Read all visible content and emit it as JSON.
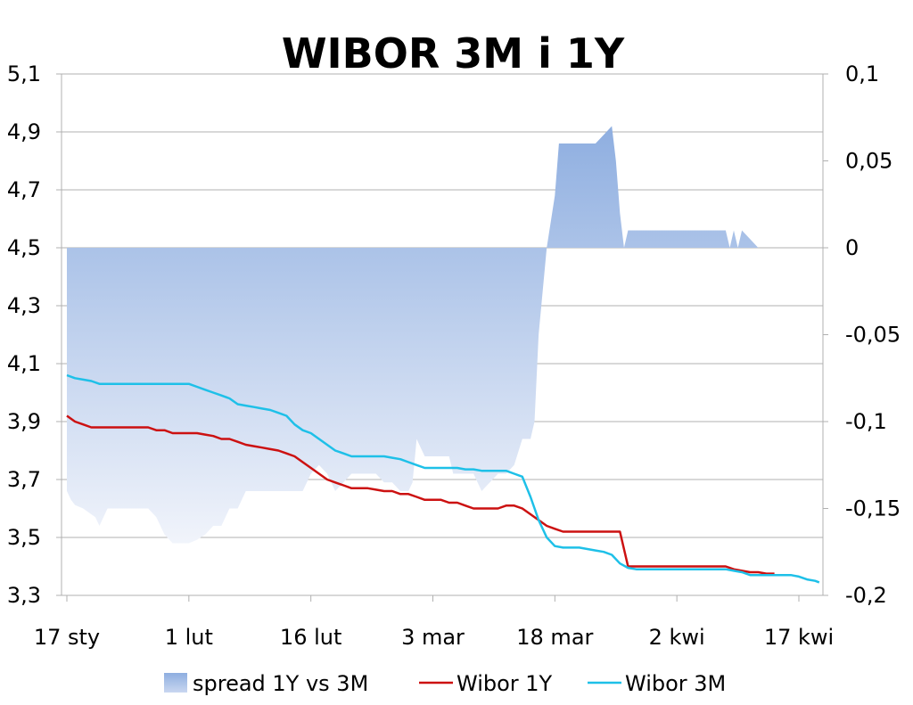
{
  "chart_data": {
    "type": "line",
    "title": "WIBOR 3M i 1Y",
    "x_tick_labels": [
      "17 sty",
      "1 lut",
      "16 lut",
      "3 mar",
      "18 mar",
      "2 kwi",
      "17 kwi"
    ],
    "x_tick_days": [
      0,
      15,
      30,
      45,
      60,
      75,
      90
    ],
    "y_left": {
      "ylim": [
        3.3,
        5.1
      ],
      "tick_labels": [
        "5,1",
        "4,9",
        "4,7",
        "4,5",
        "4,3",
        "4,1",
        "3,9",
        "3,7",
        "3,5",
        "3,3"
      ]
    },
    "y_right": {
      "ylim": [
        -0.2,
        0.1
      ],
      "tick_labels": [
        "0,1",
        "0,05",
        "0",
        "-0,05",
        "-0,1",
        "-0,15",
        "-0,2"
      ]
    },
    "grid": true,
    "legend_position": "bottom",
    "colors": {
      "spread": "#8eaee0",
      "wibor_1y": "#cc1111",
      "wibor_3m": "#1ec0e8",
      "grid": "#b0b0b0"
    },
    "series": [
      {
        "name": "spread 1Y vs 3M",
        "kind": "area",
        "axis": "right",
        "points": [
          [
            0,
            -0.14
          ],
          [
            0.5,
            -0.145
          ],
          [
            1,
            -0.148
          ],
          [
            2,
            -0.15
          ],
          [
            3.5,
            -0.155
          ],
          [
            4,
            -0.16
          ],
          [
            5,
            -0.15
          ],
          [
            6,
            -0.15
          ],
          [
            7,
            -0.15
          ],
          [
            8,
            -0.15
          ],
          [
            9,
            -0.15
          ],
          [
            10,
            -0.15
          ],
          [
            11,
            -0.155
          ],
          [
            12,
            -0.165
          ],
          [
            13,
            -0.17
          ],
          [
            14,
            -0.17
          ],
          [
            15,
            -0.17
          ],
          [
            16,
            -0.168
          ],
          [
            17,
            -0.165
          ],
          [
            18,
            -0.16
          ],
          [
            19,
            -0.16
          ],
          [
            20,
            -0.15
          ],
          [
            21,
            -0.15
          ],
          [
            22,
            -0.14
          ],
          [
            23,
            -0.14
          ],
          [
            24,
            -0.14
          ],
          [
            25,
            -0.14
          ],
          [
            26,
            -0.14
          ],
          [
            27,
            -0.14
          ],
          [
            28,
            -0.14
          ],
          [
            29,
            -0.14
          ],
          [
            30,
            -0.13
          ],
          [
            31,
            -0.125
          ],
          [
            32,
            -0.13
          ],
          [
            33,
            -0.14
          ],
          [
            34,
            -0.135
          ],
          [
            35,
            -0.13
          ],
          [
            36,
            -0.13
          ],
          [
            37,
            -0.13
          ],
          [
            38,
            -0.13
          ],
          [
            39,
            -0.135
          ],
          [
            40,
            -0.135
          ],
          [
            41,
            -0.14
          ],
          [
            42,
            -0.14
          ],
          [
            42.5,
            -0.135
          ],
          [
            43,
            -0.11
          ],
          [
            43.5,
            -0.115
          ],
          [
            44,
            -0.12
          ],
          [
            45,
            -0.12
          ],
          [
            46,
            -0.12
          ],
          [
            47,
            -0.12
          ],
          [
            47.5,
            -0.13
          ],
          [
            48,
            -0.13
          ],
          [
            49,
            -0.13
          ],
          [
            50,
            -0.13
          ],
          [
            51,
            -0.14
          ],
          [
            52,
            -0.135
          ],
          [
            53,
            -0.13
          ],
          [
            54,
            -0.13
          ],
          [
            55,
            -0.125
          ],
          [
            56,
            -0.11
          ],
          [
            57,
            -0.11
          ],
          [
            57.5,
            -0.1
          ],
          [
            58,
            -0.05
          ],
          [
            59,
            0
          ],
          [
            60,
            0.03
          ],
          [
            60.5,
            0.06
          ],
          [
            61,
            0.06
          ],
          [
            62,
            0.06
          ],
          [
            63,
            0.06
          ],
          [
            64,
            0.06
          ],
          [
            65,
            0.06
          ],
          [
            66,
            0.065
          ],
          [
            67,
            0.07
          ],
          [
            67.5,
            0.05
          ],
          [
            68,
            0.02
          ],
          [
            68.5,
            0
          ],
          [
            69,
            0.01
          ],
          [
            70,
            0.01
          ],
          [
            71,
            0.01
          ],
          [
            72,
            0.01
          ],
          [
            73,
            0.01
          ],
          [
            74,
            0.01
          ],
          [
            75,
            0.01
          ],
          [
            76,
            0.01
          ],
          [
            77,
            0.01
          ],
          [
            78,
            0.01
          ],
          [
            79,
            0.01
          ],
          [
            80,
            0.01
          ],
          [
            81,
            0.01
          ],
          [
            81.5,
            0
          ],
          [
            82,
            0.01
          ],
          [
            82.5,
            0
          ],
          [
            83,
            0.01
          ],
          [
            84,
            0.005
          ],
          [
            85,
            0
          ]
        ]
      },
      {
        "name": "Wibor 1Y",
        "kind": "line",
        "axis": "left",
        "points": [
          [
            0,
            3.92
          ],
          [
            1,
            3.9
          ],
          [
            2,
            3.89
          ],
          [
            3,
            3.88
          ],
          [
            4,
            3.88
          ],
          [
            5,
            3.88
          ],
          [
            6,
            3.88
          ],
          [
            7,
            3.88
          ],
          [
            8,
            3.88
          ],
          [
            9,
            3.88
          ],
          [
            10,
            3.88
          ],
          [
            11,
            3.87
          ],
          [
            12,
            3.87
          ],
          [
            13,
            3.86
          ],
          [
            14,
            3.86
          ],
          [
            15,
            3.86
          ],
          [
            16,
            3.86
          ],
          [
            17,
            3.855
          ],
          [
            18,
            3.85
          ],
          [
            19,
            3.84
          ],
          [
            20,
            3.84
          ],
          [
            21,
            3.83
          ],
          [
            22,
            3.82
          ],
          [
            23,
            3.815
          ],
          [
            24,
            3.81
          ],
          [
            25,
            3.805
          ],
          [
            26,
            3.8
          ],
          [
            27,
            3.79
          ],
          [
            28,
            3.78
          ],
          [
            29,
            3.76
          ],
          [
            30,
            3.74
          ],
          [
            31,
            3.72
          ],
          [
            32,
            3.7
          ],
          [
            33,
            3.69
          ],
          [
            34,
            3.68
          ],
          [
            35,
            3.67
          ],
          [
            36,
            3.67
          ],
          [
            37,
            3.67
          ],
          [
            38,
            3.665
          ],
          [
            39,
            3.66
          ],
          [
            40,
            3.66
          ],
          [
            41,
            3.65
          ],
          [
            42,
            3.65
          ],
          [
            43,
            3.64
          ],
          [
            44,
            3.63
          ],
          [
            45,
            3.63
          ],
          [
            46,
            3.63
          ],
          [
            47,
            3.62
          ],
          [
            48,
            3.62
          ],
          [
            49,
            3.61
          ],
          [
            50,
            3.6
          ],
          [
            51,
            3.6
          ],
          [
            52,
            3.6
          ],
          [
            53,
            3.6
          ],
          [
            54,
            3.61
          ],
          [
            55,
            3.61
          ],
          [
            56,
            3.6
          ],
          [
            57,
            3.58
          ],
          [
            58,
            3.56
          ],
          [
            59,
            3.54
          ],
          [
            60,
            3.53
          ],
          [
            61,
            3.52
          ],
          [
            62,
            3.52
          ],
          [
            63,
            3.52
          ],
          [
            64,
            3.52
          ],
          [
            65,
            3.52
          ],
          [
            66,
            3.52
          ],
          [
            67,
            3.52
          ],
          [
            68,
            3.52
          ],
          [
            69,
            3.4
          ],
          [
            70,
            3.4
          ],
          [
            71,
            3.4
          ],
          [
            72,
            3.4
          ],
          [
            73,
            3.4
          ],
          [
            74,
            3.4
          ],
          [
            75,
            3.4
          ],
          [
            76,
            3.4
          ],
          [
            77,
            3.4
          ],
          [
            78,
            3.4
          ],
          [
            79,
            3.4
          ],
          [
            80,
            3.4
          ],
          [
            81,
            3.4
          ],
          [
            82,
            3.39
          ],
          [
            83,
            3.385
          ],
          [
            84,
            3.38
          ],
          [
            85,
            3.38
          ],
          [
            86,
            3.375
          ],
          [
            87,
            3.375
          ]
        ]
      },
      {
        "name": "Wibor 3M",
        "kind": "line",
        "axis": "left",
        "points": [
          [
            0,
            4.06
          ],
          [
            1,
            4.05
          ],
          [
            2,
            4.045
          ],
          [
            3,
            4.04
          ],
          [
            4,
            4.03
          ],
          [
            5,
            4.03
          ],
          [
            6,
            4.03
          ],
          [
            7,
            4.03
          ],
          [
            8,
            4.03
          ],
          [
            9,
            4.03
          ],
          [
            10,
            4.03
          ],
          [
            11,
            4.03
          ],
          [
            12,
            4.03
          ],
          [
            13,
            4.03
          ],
          [
            14,
            4.03
          ],
          [
            15,
            4.03
          ],
          [
            16,
            4.02
          ],
          [
            17,
            4.01
          ],
          [
            18,
            4.0
          ],
          [
            19,
            3.99
          ],
          [
            20,
            3.98
          ],
          [
            21,
            3.96
          ],
          [
            22,
            3.955
          ],
          [
            23,
            3.95
          ],
          [
            24,
            3.945
          ],
          [
            25,
            3.94
          ],
          [
            26,
            3.93
          ],
          [
            27,
            3.92
          ],
          [
            28,
            3.89
          ],
          [
            29,
            3.87
          ],
          [
            30,
            3.86
          ],
          [
            31,
            3.84
          ],
          [
            32,
            3.82
          ],
          [
            33,
            3.8
          ],
          [
            34,
            3.79
          ],
          [
            35,
            3.78
          ],
          [
            36,
            3.78
          ],
          [
            37,
            3.78
          ],
          [
            38,
            3.78
          ],
          [
            39,
            3.78
          ],
          [
            40,
            3.775
          ],
          [
            41,
            3.77
          ],
          [
            42,
            3.76
          ],
          [
            43,
            3.75
          ],
          [
            44,
            3.74
          ],
          [
            45,
            3.74
          ],
          [
            46,
            3.74
          ],
          [
            47,
            3.74
          ],
          [
            48,
            3.74
          ],
          [
            49,
            3.735
          ],
          [
            50,
            3.735
          ],
          [
            51,
            3.73
          ],
          [
            52,
            3.73
          ],
          [
            53,
            3.73
          ],
          [
            54,
            3.73
          ],
          [
            55,
            3.72
          ],
          [
            56,
            3.71
          ],
          [
            57,
            3.64
          ],
          [
            58,
            3.56
          ],
          [
            59,
            3.5
          ],
          [
            60,
            3.47
          ],
          [
            61,
            3.465
          ],
          [
            62,
            3.465
          ],
          [
            63,
            3.465
          ],
          [
            64,
            3.46
          ],
          [
            65,
            3.455
          ],
          [
            66,
            3.45
          ],
          [
            67,
            3.44
          ],
          [
            68,
            3.41
          ],
          [
            69,
            3.395
          ],
          [
            70,
            3.39
          ],
          [
            71,
            3.39
          ],
          [
            72,
            3.39
          ],
          [
            73,
            3.39
          ],
          [
            74,
            3.39
          ],
          [
            75,
            3.39
          ],
          [
            76,
            3.39
          ],
          [
            77,
            3.39
          ],
          [
            78,
            3.39
          ],
          [
            79,
            3.39
          ],
          [
            80,
            3.39
          ],
          [
            81,
            3.39
          ],
          [
            82,
            3.385
          ],
          [
            83,
            3.38
          ],
          [
            84,
            3.37
          ],
          [
            85,
            3.37
          ],
          [
            86,
            3.37
          ],
          [
            87,
            3.37
          ],
          [
            88,
            3.37
          ],
          [
            89,
            3.37
          ],
          [
            90,
            3.365
          ],
          [
            91,
            3.355
          ],
          [
            92,
            3.35
          ],
          [
            92.5,
            3.345
          ]
        ]
      }
    ]
  }
}
